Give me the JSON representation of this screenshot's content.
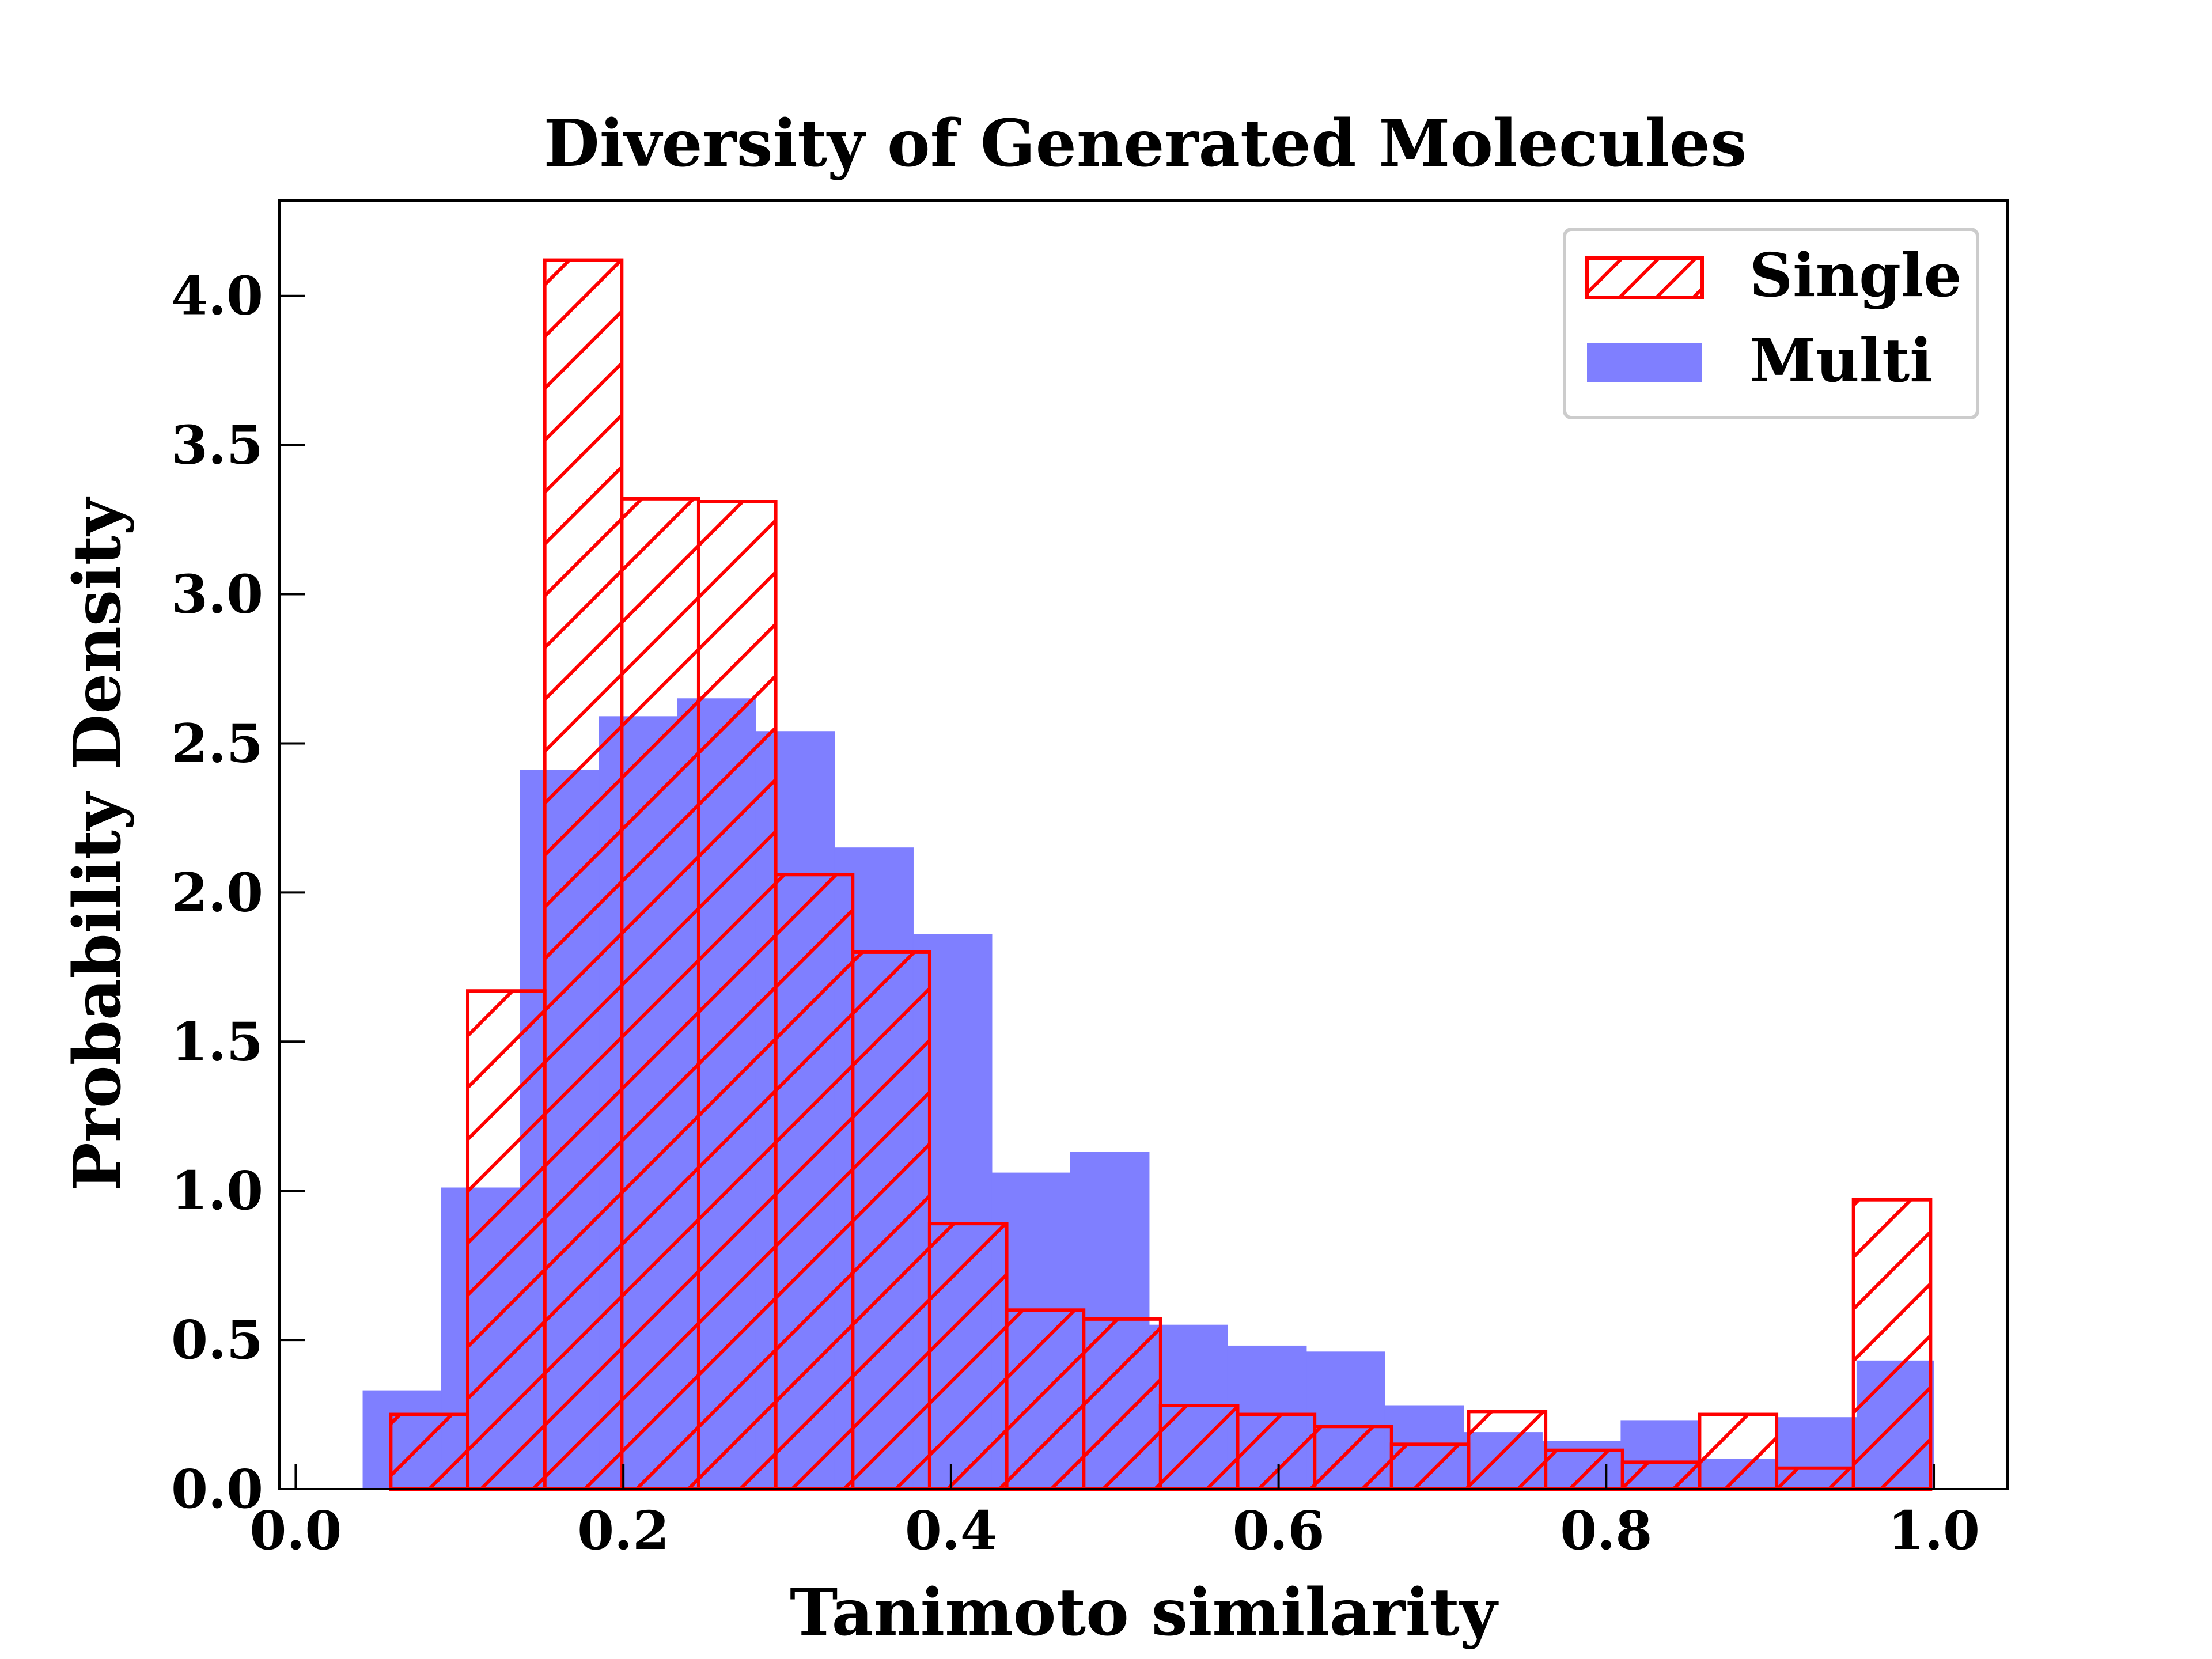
{
  "chart_data": {
    "type": "bar",
    "title": "Diversity of Generated Molecules",
    "xlabel": "Tanimoto similarity",
    "ylabel": "Probability Density",
    "xlim": [
      -0.01,
      1.045
    ],
    "ylim": [
      0,
      4.32
    ],
    "xticks": [
      0.0,
      0.2,
      0.4,
      0.6,
      0.8,
      1.0
    ],
    "xtick_labels": [
      "0.0",
      "0.2",
      "0.4",
      "0.6",
      "0.8",
      "1.0"
    ],
    "yticks": [
      0.0,
      0.5,
      1.0,
      1.5,
      2.0,
      2.5,
      3.0,
      3.5,
      4.0
    ],
    "ytick_labels": [
      "0.0",
      "0.5",
      "1.0",
      "1.5",
      "2.0",
      "2.5",
      "3.0",
      "3.5",
      "4.0"
    ],
    "grid": false,
    "legend_position": "top-right",
    "series": [
      {
        "name": "Multi",
        "style": "filled",
        "color": "#7f7fff",
        "bin_edges": [
          0.041,
          0.089,
          0.137,
          0.185,
          0.233,
          0.281,
          0.329,
          0.377,
          0.425,
          0.473,
          0.521,
          0.569,
          0.617,
          0.665,
          0.713,
          0.761,
          0.809,
          0.857,
          0.905,
          0.953,
          1.0
        ],
        "values": [
          0.33,
          1.01,
          2.41,
          2.59,
          2.65,
          2.54,
          2.15,
          1.86,
          1.06,
          1.13,
          0.55,
          0.48,
          0.46,
          0.28,
          0.19,
          0.16,
          0.23,
          0.1,
          0.24,
          0.43
        ]
      },
      {
        "name": "Single",
        "style": "hatched",
        "color": "#ff0000",
        "bin_edges": [
          0.058,
          0.105,
          0.152,
          0.199,
          0.246,
          0.293,
          0.34,
          0.387,
          0.434,
          0.481,
          0.528,
          0.575,
          0.622,
          0.669,
          0.716,
          0.763,
          0.81,
          0.857,
          0.904,
          0.951,
          0.998
        ],
        "values": [
          0.25,
          1.67,
          4.12,
          3.32,
          3.31,
          2.06,
          1.8,
          0.89,
          0.6,
          0.57,
          0.28,
          0.25,
          0.21,
          0.15,
          0.26,
          0.13,
          0.09,
          0.25,
          0.07,
          0.97
        ]
      }
    ]
  }
}
